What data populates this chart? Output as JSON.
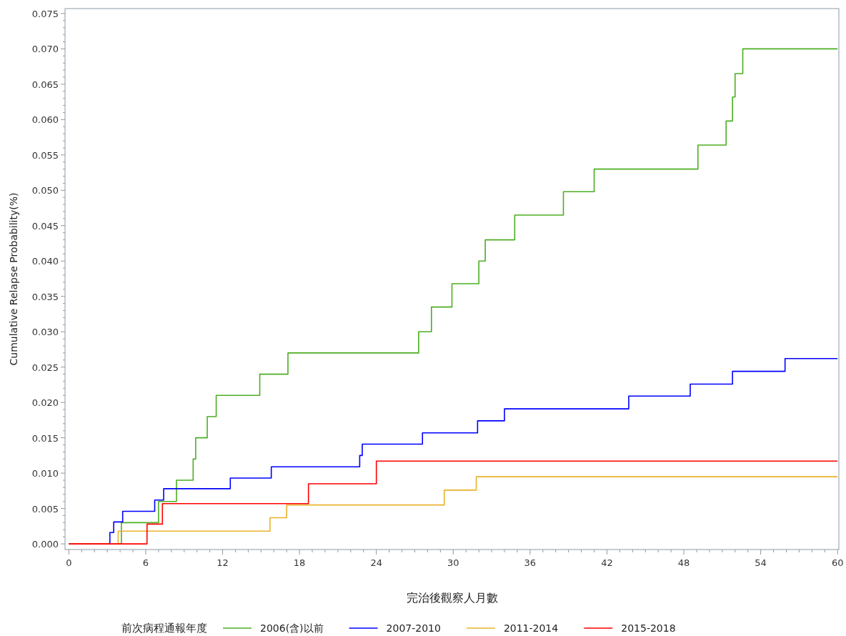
{
  "chart_data": {
    "type": "step",
    "xlabel": "完治後觀察人月數",
    "ylabel": "Cumulative Relapse Probability(%)",
    "legend_title": "前次病程通報年度",
    "legend": "bottom",
    "grid": false,
    "xlim": [
      -0.3,
      60.1
    ],
    "xticks": [
      0,
      6,
      12,
      18,
      24,
      30,
      36,
      42,
      48,
      54,
      60
    ],
    "ylim": [
      -0.0008,
      0.0757
    ],
    "yticks": [
      {
        "value": 0,
        "label": "0.000"
      },
      {
        "value": 0.005,
        "label": "0.005"
      },
      {
        "value": 0.01,
        "label": "0.010"
      },
      {
        "value": 0.015,
        "label": "0.015"
      },
      {
        "value": 0.02,
        "label": "0.020"
      },
      {
        "value": 0.025,
        "label": "0.025"
      },
      {
        "value": 0.03,
        "label": "0.030"
      },
      {
        "value": 0.035,
        "label": "0.035"
      },
      {
        "value": 0.04,
        "label": "0.040"
      },
      {
        "value": 0.045,
        "label": "0.045"
      },
      {
        "value": 0.05,
        "label": "0.050"
      },
      {
        "value": 0.055,
        "label": "0.055"
      },
      {
        "value": 0.06,
        "label": "0.060"
      },
      {
        "value": 0.065,
        "label": "0.065"
      },
      {
        "value": 0.07,
        "label": "0.070"
      },
      {
        "value": 0.075,
        "label": "0.075"
      }
    ],
    "series": [
      {
        "name": "2006(含)以前",
        "color": "#4cae22",
        "x": [
          0,
          4.1,
          7.0,
          8.4,
          9.7,
          9.9,
          10.8,
          11.5,
          14.9,
          17.1,
          27.3,
          28.3,
          29.9,
          32.0,
          32.5,
          34.8,
          38.6,
          41.0,
          49.1,
          51.3,
          51.8,
          52.0,
          52.6,
          60
        ],
        "values": [
          0,
          0.003,
          0.006,
          0.009,
          0.012,
          0.015,
          0.018,
          0.021,
          0.024,
          0.027,
          0.03,
          0.0335,
          0.0368,
          0.04,
          0.043,
          0.0465,
          0.0498,
          0.053,
          0.0564,
          0.0598,
          0.0632,
          0.0665,
          0.07,
          0.07
        ]
      },
      {
        "name": "2007-2010",
        "color": "#0000ff",
        "x": [
          0,
          3.2,
          3.5,
          4.2,
          6.7,
          7.4,
          12.6,
          15.8,
          22.7,
          22.9,
          27.6,
          31.9,
          34.0,
          43.7,
          48.5,
          51.8,
          55.9,
          60
        ],
        "values": [
          0,
          0.0016,
          0.0031,
          0.0046,
          0.0062,
          0.0078,
          0.0093,
          0.0109,
          0.0125,
          0.0141,
          0.0157,
          0.0174,
          0.0191,
          0.0209,
          0.0226,
          0.0244,
          0.0262,
          0.0262
        ]
      },
      {
        "name": "2011-2014",
        "color": "#e8b22e",
        "x": [
          0,
          3.85,
          15.7,
          17.0,
          29.3,
          31.8,
          60
        ],
        "values": [
          0,
          0.0018,
          0.0037,
          0.0055,
          0.0076,
          0.0095,
          0.0095
        ]
      },
      {
        "name": "2015-2018",
        "color": "#ff0000",
        "x": [
          0,
          6.1,
          7.3,
          18.7,
          24.0,
          60
        ],
        "values": [
          0,
          0.0028,
          0.0057,
          0.0085,
          0.0117,
          0.0117
        ]
      }
    ]
  }
}
